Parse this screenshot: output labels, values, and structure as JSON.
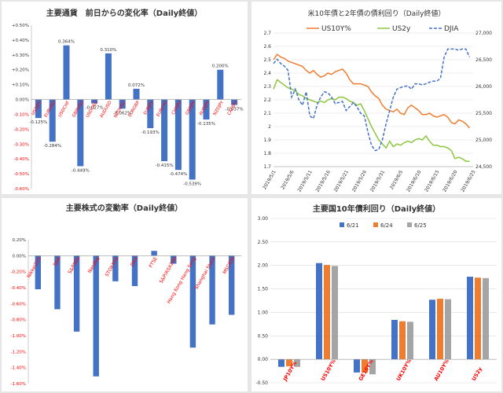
{
  "colors": {
    "blue": "#4472c4",
    "orange": "#ed7d31",
    "green": "#8cc63f",
    "gray": "#a5a5a5",
    "red_label": "#ff0000",
    "grid": "#d9d9d9",
    "axis_text": "#ff0000"
  },
  "chart_data": [
    {
      "type": "bar",
      "title": "主要通貨　前日からの変化率（Daily終値）",
      "categories": [
        "USDJPY",
        "EURUSD",
        "USDCHF",
        "GBPUSD",
        "USDCAD",
        "AUDUSD",
        "NZDUSD",
        "EURGBP",
        "EURJPY",
        "EURCHF",
        "CHFJPY",
        "GBPJPY",
        "AUDJPY",
        "NZDJPY",
        "CADJPY"
      ],
      "values": [
        -0.125,
        -0.284,
        0.364,
        -0.449,
        -0.027,
        0.31,
        -0.062,
        0.072,
        -0.193,
        -0.415,
        -0.474,
        -0.539,
        -0.135,
        0.2,
        -0.037
      ],
      "data_labels": [
        "-0.125%",
        "-0.284%",
        "0.364%",
        "-0.449%",
        "-0.027%",
        "0.310%",
        "-0.062%",
        "0.072%",
        "-0.193%",
        "-0.415%",
        "-0.474%",
        "-0.539%",
        "-0.135%",
        "0.200%",
        "-0.037%"
      ],
      "ylim": [
        -0.6,
        0.5
      ],
      "ytick_labels": [
        "+0.50%",
        "+0.40%",
        "+0.30%",
        "+0.20%",
        "+0.10%",
        "0.00%",
        "-0.10%",
        "-0.20%",
        "-0.30%",
        "-0.40%",
        "-0.50%",
        "-0.60%"
      ],
      "grid": false
    },
    {
      "type": "line",
      "title": "米10年債と2年債の債利回り（Daily終値）",
      "x": [
        "2019/5/1",
        "2019/5/6",
        "2019/5/11",
        "2019/5/16",
        "2019/5/21",
        "2019/5/26",
        "2019/5/31",
        "2019/6/5",
        "2019/6/10",
        "2019/6/15",
        "2019/6/20",
        "2019/6/25"
      ],
      "xlim": [
        0,
        55
      ],
      "series": [
        {
          "name": "US10Y%",
          "axis": "left",
          "color": "#ed7d31",
          "values": [
            [
              0,
              2.5
            ],
            [
              1,
              2.54
            ],
            [
              2,
              2.52
            ],
            [
              3,
              2.51
            ],
            [
              4,
              2.49
            ],
            [
              5,
              2.48
            ],
            [
              6,
              2.47
            ],
            [
              7,
              2.46
            ],
            [
              8,
              2.45
            ],
            [
              9,
              2.42
            ],
            [
              10,
              2.4
            ],
            [
              11,
              2.42
            ],
            [
              12,
              2.39
            ],
            [
              13,
              2.37
            ],
            [
              14,
              2.38
            ],
            [
              15,
              2.4
            ],
            [
              16,
              2.39
            ],
            [
              17,
              2.41
            ],
            [
              18,
              2.42
            ],
            [
              19,
              2.43
            ],
            [
              20,
              2.4
            ],
            [
              21,
              2.35
            ],
            [
              22,
              2.32
            ],
            [
              23,
              2.32
            ],
            [
              24,
              2.32
            ],
            [
              25,
              2.31
            ],
            [
              26,
              2.3
            ],
            [
              27,
              2.26
            ],
            [
              28,
              2.23
            ],
            [
              29,
              2.21
            ],
            [
              30,
              2.16
            ],
            [
              31,
              2.13
            ],
            [
              32,
              2.12
            ],
            [
              33,
              2.11
            ],
            [
              34,
              2.13
            ],
            [
              35,
              2.1
            ],
            [
              36,
              2.09
            ],
            [
              37,
              2.14
            ],
            [
              38,
              2.16
            ],
            [
              39,
              2.14
            ],
            [
              40,
              2.12
            ],
            [
              41,
              2.09
            ],
            [
              42,
              2.09
            ],
            [
              43,
              2.1
            ],
            [
              44,
              2.08
            ],
            [
              45,
              2.07
            ],
            [
              46,
              2.08
            ],
            [
              47,
              2.09
            ],
            [
              48,
              2.07
            ],
            [
              49,
              2.03
            ],
            [
              50,
              2.02
            ],
            [
              51,
              2.05
            ],
            [
              52,
              2.04
            ],
            [
              53,
              2.02
            ],
            [
              54,
              1.99
            ]
          ]
        },
        {
          "name": "US2y",
          "axis": "left",
          "color": "#8cc63f",
          "values": [
            [
              0,
              2.28
            ],
            [
              1,
              2.35
            ],
            [
              2,
              2.33
            ],
            [
              3,
              2.31
            ],
            [
              4,
              2.29
            ],
            [
              5,
              2.28
            ],
            [
              6,
              2.27
            ],
            [
              7,
              2.24
            ],
            [
              8,
              2.23
            ],
            [
              9,
              2.21
            ],
            [
              10,
              2.2
            ],
            [
              11,
              2.19
            ],
            [
              12,
              2.18
            ],
            [
              13,
              2.19
            ],
            [
              14,
              2.18
            ],
            [
              15,
              2.2
            ],
            [
              16,
              2.21
            ],
            [
              17,
              2.2
            ],
            [
              18,
              2.22
            ],
            [
              19,
              2.22
            ],
            [
              20,
              2.21
            ],
            [
              21,
              2.19
            ],
            [
              22,
              2.18
            ],
            [
              23,
              2.16
            ],
            [
              24,
              2.17
            ],
            [
              25,
              2.12
            ],
            [
              26,
              2.06
            ],
            [
              27,
              2.0
            ],
            [
              28,
              1.95
            ],
            [
              29,
              1.9
            ],
            [
              30,
              1.87
            ],
            [
              31,
              1.84
            ],
            [
              32,
              1.89
            ],
            [
              33,
              1.85
            ],
            [
              34,
              1.87
            ],
            [
              35,
              1.86
            ],
            [
              36,
              1.88
            ],
            [
              37,
              1.89
            ],
            [
              38,
              1.88
            ],
            [
              39,
              1.9
            ],
            [
              40,
              1.91
            ],
            [
              41,
              1.9
            ],
            [
              42,
              1.93
            ],
            [
              43,
              1.89
            ],
            [
              44,
              1.86
            ],
            [
              45,
              1.86
            ],
            [
              46,
              1.85
            ],
            [
              47,
              1.85
            ],
            [
              48,
              1.84
            ],
            [
              49,
              1.82
            ],
            [
              50,
              1.76
            ],
            [
              51,
              1.77
            ],
            [
              52,
              1.76
            ],
            [
              53,
              1.74
            ],
            [
              54,
              1.74
            ]
          ]
        },
        {
          "name": "DJIA",
          "axis": "right",
          "color": "#4472c4",
          "dash": true,
          "values": [
            [
              0,
              26430
            ],
            [
              1,
              26510
            ],
            [
              2,
              26430
            ],
            [
              3,
              26380
            ],
            [
              4,
              26300
            ],
            [
              5,
              25800
            ],
            [
              6,
              25950
            ],
            [
              7,
              25750
            ],
            [
              8,
              25650
            ],
            [
              9,
              25900
            ],
            [
              10,
              25450
            ],
            [
              11,
              25400
            ],
            [
              12,
              25650
            ],
            [
              13,
              25800
            ],
            [
              14,
              25900
            ],
            [
              15,
              25880
            ],
            [
              16,
              25800
            ],
            [
              17,
              25680
            ],
            [
              18,
              25700
            ],
            [
              19,
              25720
            ],
            [
              20,
              25550
            ],
            [
              21,
              25620
            ],
            [
              22,
              25700
            ],
            [
              23,
              25620
            ],
            [
              24,
              25500
            ],
            [
              25,
              25450
            ],
            [
              26,
              25150
            ],
            [
              27,
              24900
            ],
            [
              28,
              24800
            ],
            [
              29,
              24820
            ],
            [
              30,
              25000
            ],
            [
              31,
              25300
            ],
            [
              32,
              25550
            ],
            [
              33,
              25800
            ],
            [
              34,
              25950
            ],
            [
              35,
              25980
            ],
            [
              36,
              26000
            ],
            [
              37,
              26010
            ],
            [
              38,
              25950
            ],
            [
              39,
              26050
            ],
            [
              40,
              26050
            ],
            [
              41,
              26030
            ],
            [
              42,
              26050
            ],
            [
              43,
              26080
            ],
            [
              44,
              26100
            ],
            [
              45,
              26100
            ],
            [
              46,
              26150
            ],
            [
              47,
              26550
            ],
            [
              48,
              26700
            ],
            [
              49,
              26700
            ],
            [
              50,
              26700
            ],
            [
              51,
              26680
            ],
            [
              52,
              26700
            ],
            [
              53,
              26700
            ],
            [
              54,
              26550
            ]
          ]
        }
      ],
      "ylim_left": [
        1.7,
        2.7
      ],
      "ylim_right": [
        24500,
        27000
      ],
      "yticks_left": [
        "2.7",
        "2.6",
        "2.5",
        "2.4",
        "2.3",
        "2.2",
        "2.1",
        "2",
        "1.9",
        "1.8",
        "1.7"
      ],
      "yticks_right": [
        "27,000",
        "26,500",
        "26,000",
        "25,500",
        "25,000",
        "24,500"
      ],
      "legend": "top-center",
      "grid": true
    },
    {
      "type": "bar",
      "title": "主要株式の変動率（Daily終値）",
      "categories": [
        "Nikkei225",
        "DJIA",
        "S&P500",
        "Nasdaq",
        "STOXX50",
        "DAX",
        "FTSE",
        "S&P/ASX200",
        "Hong Kong Hang Seng",
        "Shanghai Stock",
        "MSCIEM"
      ],
      "values": [
        -0.42,
        -0.67,
        -0.95,
        -1.51,
        -0.32,
        -0.38,
        0.06,
        -0.1,
        -1.15,
        -0.86,
        -0.74
      ],
      "ylim": [
        -1.6,
        0.2
      ],
      "ytick_labels": [
        "0.20%",
        "0.00%",
        "-0.20%",
        "-0.40%",
        "-0.60%",
        "-0.80%",
        "-1.00%",
        "-1.20%",
        "-1.40%",
        "-1.60%"
      ],
      "grid": false
    },
    {
      "type": "bar",
      "title": "主要国10年債利回り（Daily終値）",
      "categories": [
        "JP10Y%",
        "US10Y%",
        "GE10Y%",
        "UK10Y%",
        "AU10Y%",
        "US2y"
      ],
      "series": [
        {
          "name": "6/21",
          "color": "#4472c4",
          "values": [
            -0.16,
            2.05,
            -0.28,
            0.84,
            1.27,
            1.76
          ]
        },
        {
          "name": "6/24",
          "color": "#ed7d31",
          "values": [
            -0.15,
            2.01,
            -0.28,
            0.81,
            1.29,
            1.74
          ]
        },
        {
          "name": "6/25",
          "color": "#a5a5a5",
          "values": [
            -0.16,
            1.99,
            -0.32,
            0.8,
            1.28,
            1.73
          ]
        }
      ],
      "ylim": [
        -0.5,
        3.0
      ],
      "ytick_labels": [
        "3.00",
        "2.50",
        "2.00",
        "1.50",
        "1.00",
        "0.50",
        "0.00",
        "-0.50"
      ],
      "legend": "top-center",
      "grid": true
    }
  ]
}
